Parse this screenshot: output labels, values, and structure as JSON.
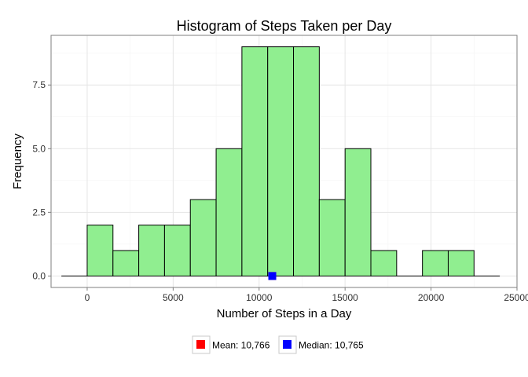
{
  "chart_data": {
    "type": "bar",
    "title": "Histogram of Steps Taken per Day",
    "xlabel": "Number of Steps in a Day",
    "ylabel": "Frequency",
    "xlim": [
      -2100,
      25000
    ],
    "ylim": [
      -0.45,
      9.45
    ],
    "x_ticks": [
      0,
      5000,
      10000,
      15000,
      20000,
      25000
    ],
    "x_tick_labels": [
      "0",
      "5000",
      "10000",
      "15000",
      "20000",
      "25000"
    ],
    "y_ticks": [
      0,
      2.5,
      5,
      7.5
    ],
    "y_tick_labels": [
      "0.0",
      "2.5",
      "5.0",
      "7.5"
    ],
    "grid": true,
    "bin_width": 1500,
    "bins": [
      {
        "start": -1500,
        "end": 0,
        "count": 0
      },
      {
        "start": 0,
        "end": 1500,
        "count": 2
      },
      {
        "start": 1500,
        "end": 3000,
        "count": 1
      },
      {
        "start": 3000,
        "end": 4500,
        "count": 2
      },
      {
        "start": 4500,
        "end": 6000,
        "count": 2
      },
      {
        "start": 6000,
        "end": 7500,
        "count": 3
      },
      {
        "start": 7500,
        "end": 9000,
        "count": 5
      },
      {
        "start": 9000,
        "end": 10500,
        "count": 9
      },
      {
        "start": 10500,
        "end": 12000,
        "count": 9
      },
      {
        "start": 12000,
        "end": 13500,
        "count": 9
      },
      {
        "start": 13500,
        "end": 15000,
        "count": 3
      },
      {
        "start": 15000,
        "end": 16500,
        "count": 5
      },
      {
        "start": 16500,
        "end": 18000,
        "count": 1
      },
      {
        "start": 18000,
        "end": 19500,
        "count": 0
      },
      {
        "start": 19500,
        "end": 21000,
        "count": 1
      },
      {
        "start": 21000,
        "end": 22500,
        "count": 1
      },
      {
        "start": 22500,
        "end": 24000,
        "count": 0
      }
    ],
    "bar_fill": "#90EE90",
    "bar_stroke": "#000000",
    "markers": [
      {
        "name": "Mean",
        "label": "Mean: 10,766",
        "x": 10766,
        "y": 0,
        "color": "#FF0000"
      },
      {
        "name": "Median",
        "label": "Median: 10,765",
        "x": 10765,
        "y": 0,
        "color": "#0000FF"
      }
    ],
    "legend_position": "bottom"
  }
}
